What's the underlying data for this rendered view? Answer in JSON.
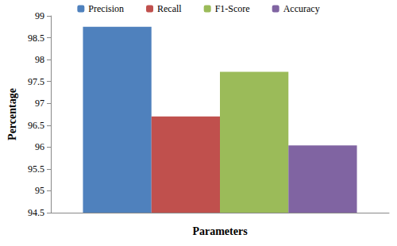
{
  "chart_data": {
    "type": "bar",
    "x_label": "Parameters",
    "y_label": "Percentage",
    "categories": [
      null
    ],
    "series": [
      {
        "name": "Precision",
        "color": "#4f81bd",
        "values": [
          98.75
        ]
      },
      {
        "name": "Recall",
        "color": "#c0504d",
        "values": [
          96.7
        ]
      },
      {
        "name": "F1-Score",
        "color": "#9bbb59",
        "values": [
          97.72
        ]
      },
      {
        "name": "Accuracy",
        "color": "#8064a2",
        "values": [
          96.04
        ]
      }
    ],
    "ylim": [
      94.5,
      99
    ],
    "yticks": [
      94.5,
      95,
      95.5,
      96,
      96.5,
      97,
      97.5,
      98,
      98.5,
      99
    ],
    "grid": false,
    "legend": "top"
  }
}
